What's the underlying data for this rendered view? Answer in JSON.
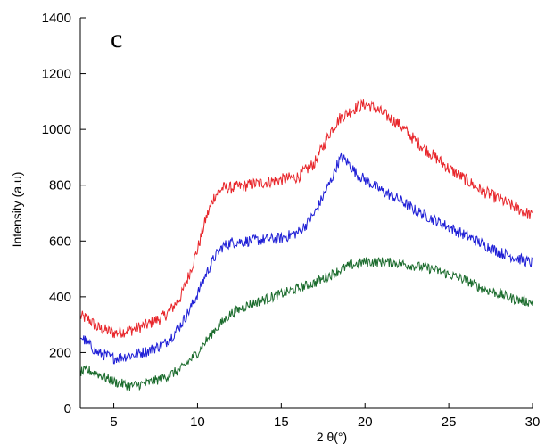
{
  "chart_data": {
    "type": "line",
    "panel_label": "c",
    "xlabel": "2 θ(°)",
    "ylabel": "Intensity (a.u)",
    "xlim": [
      3,
      30
    ],
    "ylim": [
      0,
      1400
    ],
    "xticks": [
      5,
      10,
      15,
      20,
      25,
      30
    ],
    "yticks": [
      0,
      200,
      400,
      600,
      800,
      1000,
      1200,
      1400
    ],
    "grid": false,
    "series": [
      {
        "color": "#e8262b",
        "noise": 22,
        "x": [
          3,
          3.5,
          4,
          5,
          6,
          7,
          8,
          8.5,
          9,
          9.5,
          10,
          10.5,
          11,
          11.5,
          12,
          13,
          14,
          15,
          16,
          17,
          17.5,
          18,
          18.5,
          19,
          19.5,
          20,
          20.5,
          21,
          22,
          23,
          24,
          25,
          26,
          27,
          28,
          29,
          30
        ],
        "y": [
          330,
          320,
          290,
          270,
          280,
          300,
          330,
          360,
          400,
          480,
          570,
          680,
          760,
          790,
          790,
          800,
          810,
          820,
          830,
          880,
          940,
          1000,
          1040,
          1060,
          1080,
          1090,
          1080,
          1060,
          1020,
          960,
          910,
          860,
          820,
          780,
          750,
          720,
          690
        ]
      },
      {
        "color": "#1f1fd6",
        "noise": 20,
        "x": [
          3,
          3.5,
          4,
          5,
          6,
          7,
          8,
          8.5,
          9,
          9.5,
          10,
          10.5,
          11,
          11.5,
          12,
          13,
          14,
          15,
          16,
          16.5,
          17,
          17.5,
          18,
          18.3,
          18.6,
          19,
          19.5,
          20,
          20.5,
          21,
          22,
          23,
          24,
          25,
          26,
          27,
          28,
          29,
          30
        ],
        "y": [
          260,
          230,
          200,
          180,
          190,
          205,
          230,
          260,
          300,
          350,
          410,
          480,
          540,
          580,
          595,
          600,
          605,
          610,
          630,
          660,
          700,
          760,
          820,
          870,
          900,
          880,
          840,
          820,
          800,
          780,
          750,
          710,
          680,
          650,
          620,
          590,
          560,
          540,
          520
        ]
      },
      {
        "color": "#1a6b2c",
        "noise": 18,
        "x": [
          3,
          3.5,
          4,
          5,
          6,
          7,
          8,
          9,
          9.5,
          10,
          10.5,
          11,
          11.5,
          12,
          13,
          14,
          15,
          16,
          17,
          18,
          19,
          20,
          21,
          22,
          23,
          24,
          25,
          26,
          27,
          28,
          29,
          30
        ],
        "y": [
          130,
          135,
          125,
          95,
          80,
          90,
          110,
          140,
          170,
          200,
          240,
          280,
          310,
          340,
          370,
          390,
          410,
          430,
          450,
          480,
          510,
          525,
          525,
          520,
          510,
          500,
          480,
          460,
          430,
          410,
          390,
          380
        ]
      }
    ]
  }
}
